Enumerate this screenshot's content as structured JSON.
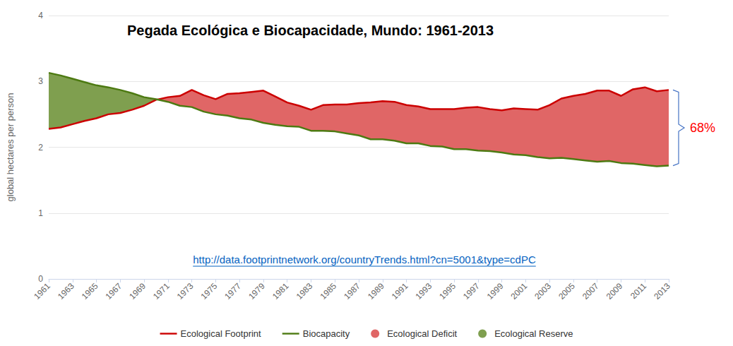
{
  "chart_data": {
    "type": "line",
    "title": "Pegada Ecológica e Biocapacidade, Mundo: 1961-2013",
    "y_label": "global hectares per person",
    "categories": [
      "1961",
      null,
      "1963",
      null,
      "1965",
      null,
      "1967",
      null,
      "1969",
      null,
      "1971",
      null,
      "1973",
      null,
      "1975",
      null,
      "1977",
      null,
      "1979",
      null,
      "1981",
      null,
      "1983",
      null,
      "1985",
      null,
      "1987",
      null,
      "1989",
      null,
      "1991",
      null,
      "1993",
      null,
      "1995",
      null,
      "1997",
      null,
      "1999",
      null,
      "2001",
      null,
      "2003",
      null,
      "2005",
      null,
      "2007",
      null,
      "2009",
      null,
      "2011",
      null,
      "2013"
    ],
    "series": [
      {
        "name": "Ecological Footprint",
        "color": "#cc0000",
        "values": [
          2.28,
          2.3,
          2.35,
          2.4,
          2.44,
          2.5,
          2.52,
          2.57,
          2.63,
          2.72,
          2.76,
          2.78,
          2.87,
          2.79,
          2.73,
          2.81,
          2.82,
          2.84,
          2.86,
          2.77,
          2.68,
          2.63,
          2.57,
          2.64,
          2.65,
          2.65,
          2.67,
          2.68,
          2.7,
          2.69,
          2.64,
          2.62,
          2.58,
          2.58,
          2.58,
          2.6,
          2.61,
          2.58,
          2.56,
          2.59,
          2.58,
          2.57,
          2.64,
          2.74,
          2.78,
          2.81,
          2.86,
          2.86,
          2.78,
          2.88,
          2.91,
          2.85,
          2.87
        ]
      },
      {
        "name": "Biocapacity",
        "color": "#4d7a12",
        "values": [
          3.13,
          3.09,
          3.04,
          2.99,
          2.94,
          2.91,
          2.87,
          2.82,
          2.76,
          2.73,
          2.69,
          2.63,
          2.61,
          2.54,
          2.5,
          2.48,
          2.44,
          2.42,
          2.37,
          2.34,
          2.32,
          2.31,
          2.25,
          2.25,
          2.24,
          2.21,
          2.18,
          2.12,
          2.12,
          2.1,
          2.06,
          2.06,
          2.02,
          2.01,
          1.97,
          1.97,
          1.95,
          1.94,
          1.92,
          1.89,
          1.88,
          1.85,
          1.83,
          1.84,
          1.82,
          1.8,
          1.78,
          1.79,
          1.76,
          1.75,
          1.73,
          1.71,
          1.72
        ]
      }
    ],
    "areas": [
      {
        "name": "Ecological Deficit",
        "color": "#e06666"
      },
      {
        "name": "Ecological Reserve",
        "color": "#7f9f4f"
      }
    ],
    "ylim": [
      0,
      4
    ],
    "yticks": [
      0,
      1,
      2,
      3,
      4
    ],
    "grid": true,
    "legend": "bottom",
    "annotations": [
      {
        "text": "68%",
        "color": "#ff0000"
      }
    ],
    "source": "http://data.footprintnetwork.org/countryTrends.html?cn=5001&type=cdPC"
  }
}
